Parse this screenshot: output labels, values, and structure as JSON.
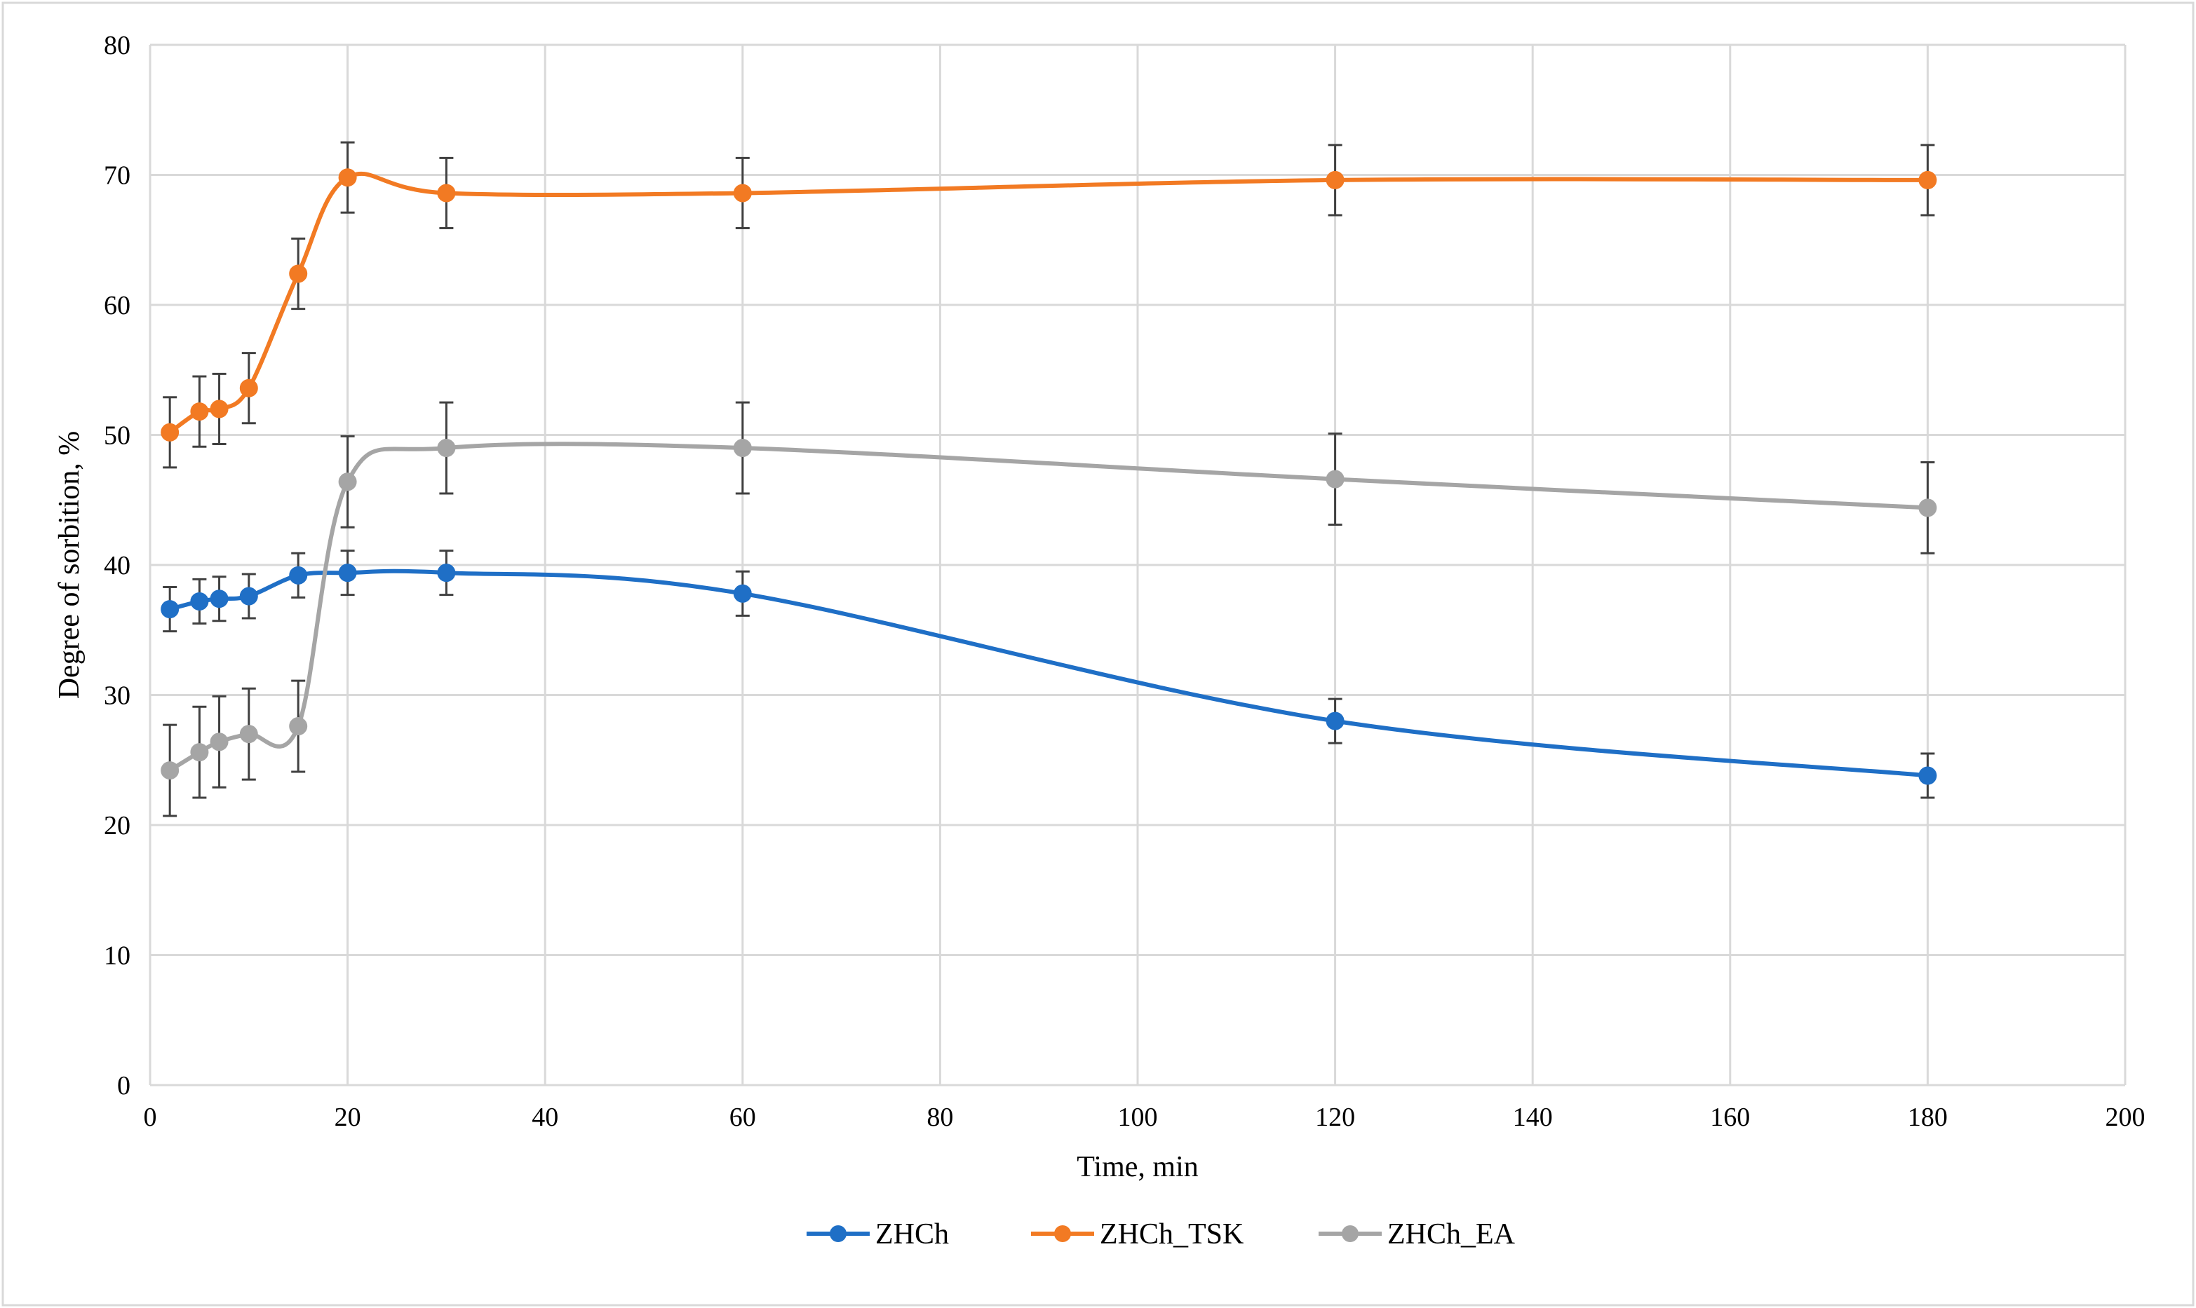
{
  "chart_data": {
    "type": "line",
    "title": "",
    "xlabel": "Time, min",
    "ylabel": "Degree of sorbition, %",
    "xlim": [
      0,
      200
    ],
    "ylim": [
      0,
      80
    ],
    "xticks": [
      0,
      20,
      40,
      60,
      80,
      100,
      120,
      140,
      160,
      180,
      200
    ],
    "yticks": [
      0,
      10,
      20,
      30,
      40,
      50,
      60,
      70,
      80
    ],
    "grid": true,
    "smooth": true,
    "legend_position": "bottom",
    "x": [
      2,
      5,
      7,
      10,
      15,
      20,
      30,
      60,
      120,
      180
    ],
    "series": [
      {
        "name": "ZHCh",
        "color": "#1F6FC6",
        "values": [
          36.6,
          37.2,
          37.4,
          37.6,
          39.2,
          39.4,
          39.4,
          37.8,
          28.0,
          23.8
        ],
        "errors": [
          1.7,
          1.7,
          1.7,
          1.7,
          1.7,
          1.7,
          1.7,
          1.7,
          1.7,
          1.7
        ]
      },
      {
        "name": "ZHCh_TSK",
        "color": "#F27A23",
        "values": [
          50.2,
          51.8,
          52.0,
          53.6,
          62.4,
          69.8,
          68.6,
          68.6,
          69.6,
          69.6
        ],
        "errors": [
          2.7,
          2.7,
          2.7,
          2.7,
          2.7,
          2.7,
          2.7,
          2.7,
          2.7,
          2.7
        ]
      },
      {
        "name": "ZHCh_EA",
        "color": "#A5A5A5",
        "values": [
          24.2,
          25.6,
          26.4,
          27.0,
          27.6,
          46.4,
          49.0,
          49.0,
          46.6,
          44.4
        ],
        "errors": [
          3.5,
          3.5,
          3.5,
          3.5,
          3.5,
          3.5,
          3.5,
          3.5,
          3.5,
          3.5
        ]
      }
    ]
  }
}
